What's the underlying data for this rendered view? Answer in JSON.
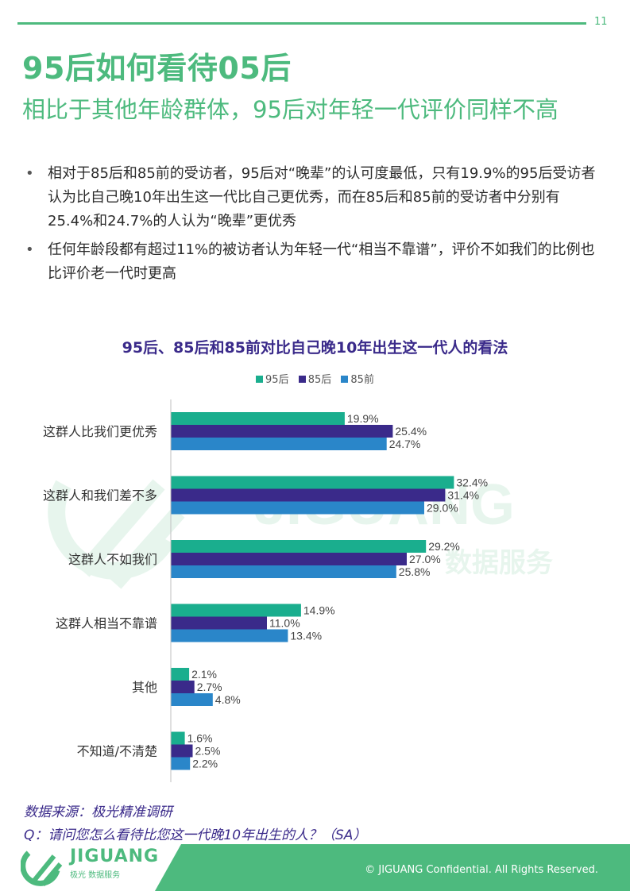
{
  "page": {
    "number": "11"
  },
  "header": {
    "title": "95后如何看待05后",
    "subtitle": "相比于其他年龄群体，95后对年轻一代评价同样不高"
  },
  "bullets": [
    "相对于85后和85前的受访者，95后对“晚辈”的认可度最低，只有19.9%的95后受访者认为比自己晚10年出生这一代比自己更优秀，而在85后和85前的受访者中分别有25.4%和24.7%的人认为“晚辈”更优秀",
    "任何年龄段都有超过11%的被访者认为年轻一代“相当不靠谱”，评价不如我们的比例也比评价老一代时更高"
  ],
  "bullet_symbol": "•",
  "chart_data": {
    "type": "bar",
    "orientation": "horizontal",
    "title": "95后、85后和85前对比自己晚10年出生这一代人的看法",
    "categories": [
      "这群人比我们更优秀",
      "这群人和我们差不多",
      "这群人不如我们",
      "这群人相当不靠谱",
      "其他",
      "不知道/不清楚"
    ],
    "series": [
      {
        "name": "95后",
        "color": "#1aae8e",
        "values": [
          19.9,
          32.4,
          29.2,
          14.9,
          2.1,
          1.6
        ]
      },
      {
        "name": "85后",
        "color": "#3a2a8a",
        "values": [
          25.4,
          31.4,
          27.0,
          11.0,
          2.7,
          2.5
        ]
      },
      {
        "name": "85前",
        "color": "#2a86c9",
        "values": [
          24.7,
          29.0,
          25.8,
          13.4,
          4.8,
          2.2
        ]
      }
    ],
    "value_suffix": "%",
    "legend_position": "top",
    "grid": false,
    "xlim": [
      0,
      40
    ]
  },
  "watermark": {
    "brand": "JIGUANG",
    "tagline": "数据服务",
    "ji": "极"
  },
  "footer": {
    "source": "数据来源：极光精准调研",
    "question": "Q：请问您怎么看待比您这一代晚10年出生的人？（SA）",
    "logo_text": "JIGUANG",
    "logo_sub": "极光 数据服务",
    "copyright": "© JIGUANG  Confidential. All Rights Reserved."
  },
  "colors": {
    "accent": "#4dba7e",
    "navy": "#3a2a8a"
  }
}
